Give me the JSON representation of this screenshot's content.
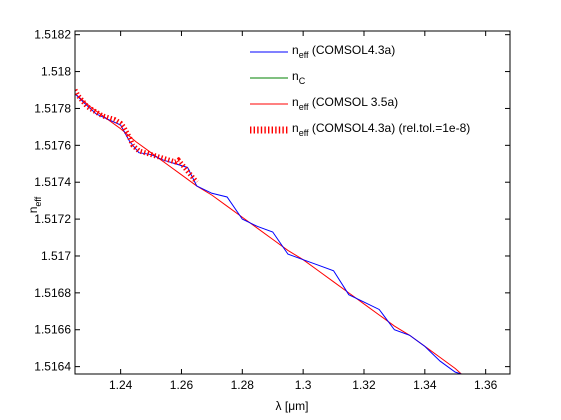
{
  "chart_data": {
    "type": "line",
    "xlabel": "λ [μm]",
    "ylabel_base": "n",
    "ylabel_sub": "eff",
    "xlim": [
      1.225,
      1.368
    ],
    "ylim": [
      1.51636,
      1.51822
    ],
    "xticks": [
      {
        "value": 1.24,
        "label": "1.24"
      },
      {
        "value": 1.26,
        "label": "1.26"
      },
      {
        "value": 1.28,
        "label": "1.28"
      },
      {
        "value": 1.3,
        "label": "1.3"
      },
      {
        "value": 1.32,
        "label": "1.32"
      },
      {
        "value": 1.34,
        "label": "1.34"
      },
      {
        "value": 1.36,
        "label": "1.36"
      }
    ],
    "yticks": [
      {
        "value": 1.5164,
        "label": "1.5164"
      },
      {
        "value": 1.5166,
        "label": "1.5166"
      },
      {
        "value": 1.5168,
        "label": "1.5168"
      },
      {
        "value": 1.517,
        "label": "1.517"
      },
      {
        "value": 1.5172,
        "label": "1.5172"
      },
      {
        "value": 1.5174,
        "label": "1.5174"
      },
      {
        "value": 1.5176,
        "label": "1.5176"
      },
      {
        "value": 1.5178,
        "label": "1.5178"
      },
      {
        "value": 1.518,
        "label": "1.518"
      },
      {
        "value": 1.5182,
        "label": "1.5182"
      }
    ],
    "legend_position": "top-right",
    "series": [
      {
        "name_base": "n",
        "name_sub": "eff",
        "name_rest": " (COMSOL4.3a)",
        "color": "#0000ff",
        "style": "solid",
        "x": [
          1.225,
          1.228,
          1.232,
          1.236,
          1.24,
          1.243,
          1.246,
          1.25,
          1.254,
          1.258,
          1.262,
          1.265,
          1.27,
          1.275,
          1.28,
          1.285,
          1.29,
          1.295,
          1.3,
          1.305,
          1.31,
          1.315,
          1.32,
          1.325,
          1.33,
          1.335,
          1.34,
          1.345,
          1.35,
          1.352
        ],
        "y": [
          1.51788,
          1.51783,
          1.51777,
          1.51774,
          1.51771,
          1.51762,
          1.51756,
          1.51755,
          1.51752,
          1.5175,
          1.51748,
          1.51738,
          1.51734,
          1.51732,
          1.5172,
          1.51716,
          1.51713,
          1.51701,
          1.51698,
          1.51695,
          1.51692,
          1.51679,
          1.51675,
          1.51671,
          1.5166,
          1.51657,
          1.51651,
          1.51643,
          1.51637,
          1.51636
        ]
      },
      {
        "name_base": "n",
        "name_sub": "C",
        "name_rest": "",
        "color": "#008000",
        "style": "solid",
        "x": [],
        "y": []
      },
      {
        "name_base": "n",
        "name_sub": "eff",
        "name_rest": " (COMSOL 3.5a)",
        "color": "#ff0000",
        "style": "solid",
        "x": [
          1.225,
          1.23,
          1.235,
          1.24,
          1.245,
          1.25,
          1.255,
          1.26,
          1.265,
          1.27,
          1.275,
          1.28,
          1.285,
          1.29,
          1.295,
          1.3,
          1.305,
          1.31,
          1.315,
          1.32,
          1.325,
          1.33,
          1.335,
          1.34,
          1.345,
          1.35,
          1.352
        ],
        "y": [
          1.51788,
          1.51781,
          1.51775,
          1.51769,
          1.51762,
          1.51756,
          1.5175,
          1.51744,
          1.51738,
          1.51733,
          1.51727,
          1.51721,
          1.51715,
          1.51709,
          1.51703,
          1.51698,
          1.51692,
          1.51686,
          1.5168,
          1.51674,
          1.51668,
          1.51662,
          1.51657,
          1.51651,
          1.51645,
          1.51639,
          1.51636
        ]
      },
      {
        "name_base": "n",
        "name_sub": "eff",
        "name_rest": " (COMSOL4.3a) (rel.tol.=1e-8)",
        "color": "#ff0000",
        "style": "dotted",
        "x": [
          1.225,
          1.226,
          1.227,
          1.228,
          1.229,
          1.23,
          1.231,
          1.232,
          1.234,
          1.236,
          1.238,
          1.239,
          1.24,
          1.241,
          1.242,
          1.243,
          1.244,
          1.246,
          1.248,
          1.25,
          1.252,
          1.254,
          1.256,
          1.258,
          1.259,
          1.26,
          1.261,
          1.262,
          1.263,
          1.264,
          1.265
        ],
        "y": [
          1.5179,
          1.51787,
          1.51785,
          1.51783,
          1.51781,
          1.5178,
          1.51779,
          1.51778,
          1.51776,
          1.51775,
          1.51774,
          1.51773,
          1.51772,
          1.5177,
          1.51767,
          1.51764,
          1.5176,
          1.51757,
          1.51756,
          1.51755,
          1.51754,
          1.51753,
          1.51752,
          1.51751,
          1.51752,
          1.5175,
          1.51748,
          1.51746,
          1.51744,
          1.51742,
          1.5174
        ]
      }
    ]
  }
}
